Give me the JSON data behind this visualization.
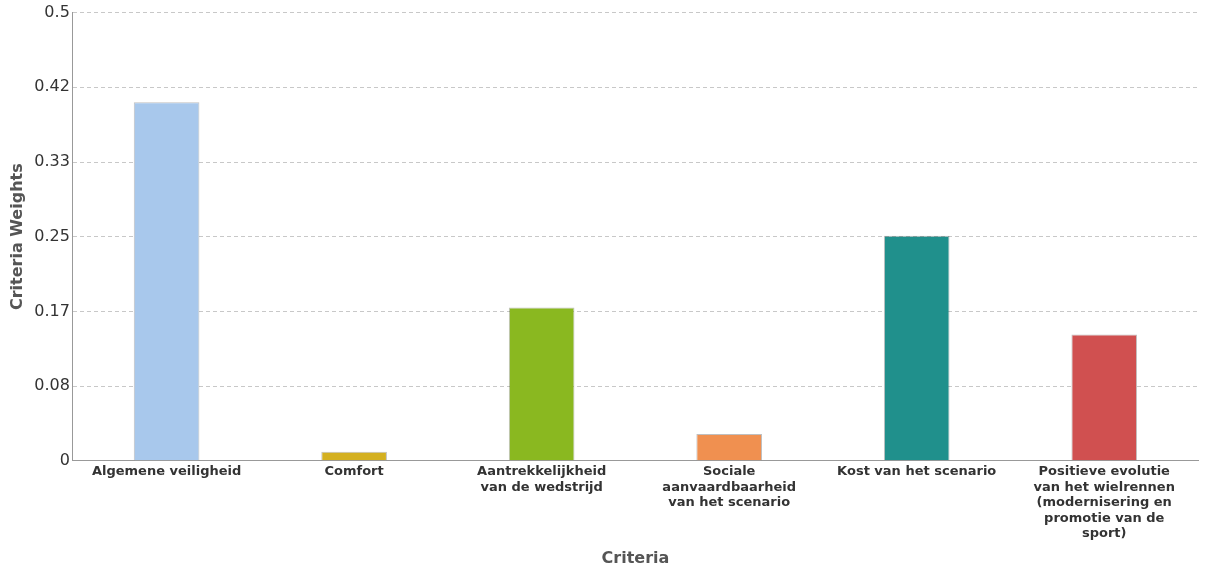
{
  "chart_data": {
    "type": "bar",
    "xlabel": "Criteria",
    "ylabel": "Criteria Weights",
    "categories": [
      "Algemene veiligheid",
      "Comfort",
      "Aantrekkelijkheid van de wedstrijd",
      "Sociale aanvaardbaarheid van het scenario",
      "Kost van het scenario",
      "Positieve evolutie van het wielrennen (modernisering en promotie van de sport)"
    ],
    "values": [
      0.4,
      0.01,
      0.171,
      0.03,
      0.251,
      0.141
    ],
    "colors": [
      "#a8c8ec",
      "#d4b020",
      "#8ab820",
      "#f09050",
      "#20908c",
      "#d05050"
    ],
    "ylim": [
      0,
      0.5
    ],
    "yticks": [
      0,
      {
        "value": 0.0833,
        "label": "0.08"
      },
      {
        "value": 0.1667,
        "label": "0.17"
      },
      0.25,
      {
        "value": 0.3333,
        "label": "0.33"
      },
      {
        "value": 0.4167,
        "label": "0.42"
      },
      0.5
    ],
    "grid": "y",
    "legend": false
  }
}
